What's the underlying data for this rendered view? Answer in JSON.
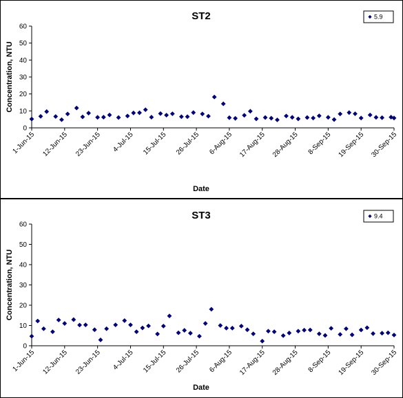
{
  "chart_data": [
    {
      "type": "scatter",
      "title": "ST2",
      "xlabel": "Date",
      "ylabel": "Concentration, NTU",
      "ylim": [
        0,
        60
      ],
      "yticks": [
        "0",
        "10",
        "20",
        "30",
        "40",
        "50",
        "60"
      ],
      "xlim": [
        "2015-06-01",
        "2015-09-30"
      ],
      "xticks": [
        "1-Jun-15",
        "12-Jun-15",
        "23-Jun-15",
        "4-Jul-15",
        "15-Jul-15",
        "26-Jul-15",
        "6-Aug-15",
        "17-Aug-15",
        "28-Aug-15",
        "8-Sep-15",
        "19-Sep-15",
        "30-Sep-15"
      ],
      "grid": false,
      "legend_position": "top-right",
      "series": [
        {
          "name": "5.9",
          "color": "#00007f",
          "marker": "diamond",
          "points": [
            {
              "x": "2015-06-01",
              "y": 5.2
            },
            {
              "x": "2015-06-04",
              "y": 6.8
            },
            {
              "x": "2015-06-06",
              "y": 9.6
            },
            {
              "x": "2015-06-09",
              "y": 6.7
            },
            {
              "x": "2015-06-11",
              "y": 4.8
            },
            {
              "x": "2015-06-13",
              "y": 8.2
            },
            {
              "x": "2015-06-16",
              "y": 11.7
            },
            {
              "x": "2015-06-18",
              "y": 6.5
            },
            {
              "x": "2015-06-20",
              "y": 8.7
            },
            {
              "x": "2015-06-23",
              "y": 6.2
            },
            {
              "x": "2015-06-25",
              "y": 6.3
            },
            {
              "x": "2015-06-27",
              "y": 7.6
            },
            {
              "x": "2015-06-30",
              "y": 6.1
            },
            {
              "x": "2015-07-03",
              "y": 7.0
            },
            {
              "x": "2015-07-05",
              "y": 8.8
            },
            {
              "x": "2015-07-07",
              "y": 8.9
            },
            {
              "x": "2015-07-09",
              "y": 10.7
            },
            {
              "x": "2015-07-11",
              "y": 6.3
            },
            {
              "x": "2015-07-14",
              "y": 8.4
            },
            {
              "x": "2015-07-16",
              "y": 7.5
            },
            {
              "x": "2015-07-18",
              "y": 8.3
            },
            {
              "x": "2015-07-21",
              "y": 6.6
            },
            {
              "x": "2015-07-23",
              "y": 6.6
            },
            {
              "x": "2015-07-25",
              "y": 9.0
            },
            {
              "x": "2015-07-28",
              "y": 8.2
            },
            {
              "x": "2015-07-30",
              "y": 6.9
            },
            {
              "x": "2015-08-01",
              "y": 18.2
            },
            {
              "x": "2015-08-04",
              "y": 14.2
            },
            {
              "x": "2015-08-06",
              "y": 6.0
            },
            {
              "x": "2015-08-08",
              "y": 5.6
            },
            {
              "x": "2015-08-11",
              "y": 7.4
            },
            {
              "x": "2015-08-13",
              "y": 9.8
            },
            {
              "x": "2015-08-15",
              "y": 5.3
            },
            {
              "x": "2015-08-18",
              "y": 6.1
            },
            {
              "x": "2015-08-20",
              "y": 5.7
            },
            {
              "x": "2015-08-22",
              "y": 4.7
            },
            {
              "x": "2015-08-25",
              "y": 7.0
            },
            {
              "x": "2015-08-27",
              "y": 6.2
            },
            {
              "x": "2015-08-29",
              "y": 5.3
            },
            {
              "x": "2015-09-01",
              "y": 6.1
            },
            {
              "x": "2015-09-03",
              "y": 5.8
            },
            {
              "x": "2015-09-05",
              "y": 7.1
            },
            {
              "x": "2015-09-08",
              "y": 6.2
            },
            {
              "x": "2015-09-10",
              "y": 4.9
            },
            {
              "x": "2015-09-12",
              "y": 8.2
            },
            {
              "x": "2015-09-15",
              "y": 9.0
            },
            {
              "x": "2015-09-17",
              "y": 8.3
            },
            {
              "x": "2015-09-19",
              "y": 5.8
            },
            {
              "x": "2015-09-22",
              "y": 7.6
            },
            {
              "x": "2015-09-24",
              "y": 6.2
            },
            {
              "x": "2015-09-26",
              "y": 6.0
            },
            {
              "x": "2015-09-29",
              "y": 6.3
            },
            {
              "x": "2015-09-30",
              "y": 5.8
            }
          ]
        }
      ]
    },
    {
      "type": "scatter",
      "title": "ST3",
      "xlabel": "Date",
      "ylabel": "Concentration, NTU",
      "ylim": [
        0,
        60
      ],
      "yticks": [
        "0",
        "10",
        "20",
        "30",
        "40",
        "50",
        "60"
      ],
      "xlim": [
        "2015-06-01",
        "2015-09-30"
      ],
      "xticks": [
        "1-Jun-15",
        "12-Jun-15",
        "23-Jun-15",
        "4-Jul-15",
        "15-Jul-15",
        "26-Jul-15",
        "6-Aug-15",
        "17-Aug-15",
        "28-Aug-15",
        "8-Sep-15",
        "19-Sep-15",
        "30-Sep-15"
      ],
      "grid": false,
      "legend_position": "top-right",
      "series": [
        {
          "name": "9.4",
          "color": "#00007f",
          "marker": "diamond",
          "points": [
            {
              "x": "2015-06-01",
              "y": 4.7
            },
            {
              "x": "2015-06-03",
              "y": 12.2
            },
            {
              "x": "2015-06-05",
              "y": 8.4
            },
            {
              "x": "2015-06-08",
              "y": 6.9
            },
            {
              "x": "2015-06-10",
              "y": 12.7
            },
            {
              "x": "2015-06-12",
              "y": 11.0
            },
            {
              "x": "2015-06-15",
              "y": 12.9
            },
            {
              "x": "2015-06-17",
              "y": 10.2
            },
            {
              "x": "2015-06-19",
              "y": 10.3
            },
            {
              "x": "2015-06-22",
              "y": 7.9
            },
            {
              "x": "2015-06-24",
              "y": 2.9
            },
            {
              "x": "2015-06-26",
              "y": 8.4
            },
            {
              "x": "2015-06-29",
              "y": 10.3
            },
            {
              "x": "2015-07-02",
              "y": 12.4
            },
            {
              "x": "2015-07-04",
              "y": 10.3
            },
            {
              "x": "2015-07-06",
              "y": 6.9
            },
            {
              "x": "2015-07-08",
              "y": 8.8
            },
            {
              "x": "2015-07-10",
              "y": 9.8
            },
            {
              "x": "2015-07-13",
              "y": 5.8
            },
            {
              "x": "2015-07-15",
              "y": 9.7
            },
            {
              "x": "2015-07-17",
              "y": 14.7
            },
            {
              "x": "2015-07-20",
              "y": 6.4
            },
            {
              "x": "2015-07-22",
              "y": 7.6
            },
            {
              "x": "2015-07-24",
              "y": 6.2
            },
            {
              "x": "2015-07-27",
              "y": 4.7
            },
            {
              "x": "2015-07-29",
              "y": 11.0
            },
            {
              "x": "2015-07-31",
              "y": 18.0
            },
            {
              "x": "2015-08-03",
              "y": 10.0
            },
            {
              "x": "2015-08-05",
              "y": 8.7
            },
            {
              "x": "2015-08-07",
              "y": 8.7
            },
            {
              "x": "2015-08-10",
              "y": 9.7
            },
            {
              "x": "2015-08-12",
              "y": 7.9
            },
            {
              "x": "2015-08-14",
              "y": 5.9
            },
            {
              "x": "2015-08-17",
              "y": 2.3
            },
            {
              "x": "2015-08-19",
              "y": 7.2
            },
            {
              "x": "2015-08-21",
              "y": 6.9
            },
            {
              "x": "2015-08-24",
              "y": 5.0
            },
            {
              "x": "2015-08-26",
              "y": 6.3
            },
            {
              "x": "2015-08-29",
              "y": 7.2
            },
            {
              "x": "2015-08-31",
              "y": 7.7
            },
            {
              "x": "2015-09-02",
              "y": 7.8
            },
            {
              "x": "2015-09-05",
              "y": 5.9
            },
            {
              "x": "2015-09-07",
              "y": 5.1
            },
            {
              "x": "2015-09-09",
              "y": 8.6
            },
            {
              "x": "2015-09-12",
              "y": 5.6
            },
            {
              "x": "2015-09-14",
              "y": 8.4
            },
            {
              "x": "2015-09-16",
              "y": 5.4
            },
            {
              "x": "2015-09-19",
              "y": 7.8
            },
            {
              "x": "2015-09-21",
              "y": 8.9
            },
            {
              "x": "2015-09-23",
              "y": 6.0
            },
            {
              "x": "2015-09-26",
              "y": 6.2
            },
            {
              "x": "2015-09-28",
              "y": 6.4
            },
            {
              "x": "2015-09-30",
              "y": 5.3
            }
          ]
        }
      ]
    }
  ]
}
